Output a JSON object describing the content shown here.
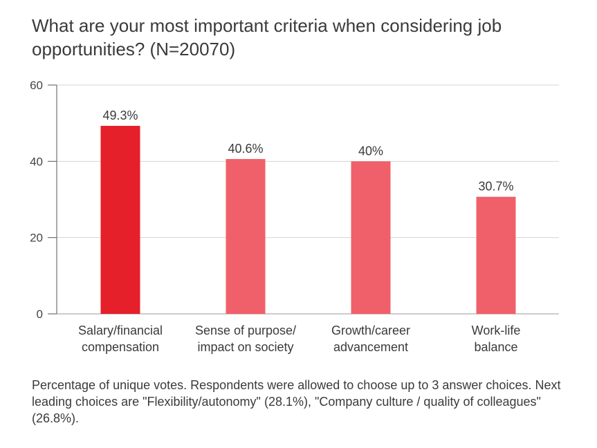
{
  "title": "What are your most important criteria when considering job opportunities? (N=20070)",
  "footnote": "Percentage of unique votes. Respondents were allowed to choose up to 3 answer choices. Next leading choices are \"Flexibility/autonomy\" (28.1%), \"Company culture / quality of colleagues\" (26.8%).",
  "colors": {
    "highlight_bar": "#e5202a",
    "bar": "#f0606a",
    "grid": "#d4d4d4",
    "axis": "#555555"
  },
  "chart_data": {
    "type": "bar",
    "title": "What are your most important criteria when considering job opportunities? (N=20070)",
    "categories": [
      [
        "Salary/financial",
        "compensation"
      ],
      [
        "Sense of purpose/",
        "impact on society"
      ],
      [
        "Growth/career",
        "advancement"
      ],
      [
        "Work-life",
        "balance"
      ]
    ],
    "values": [
      49.3,
      40.6,
      40,
      30.7
    ],
    "data_labels": [
      "49.3%",
      "40.6%",
      "40%",
      "30.7%"
    ],
    "highlighted_index": 0,
    "ylim": [
      0,
      60
    ],
    "yticks": [
      0,
      20,
      40,
      60
    ],
    "grid": true,
    "legend": "none"
  }
}
